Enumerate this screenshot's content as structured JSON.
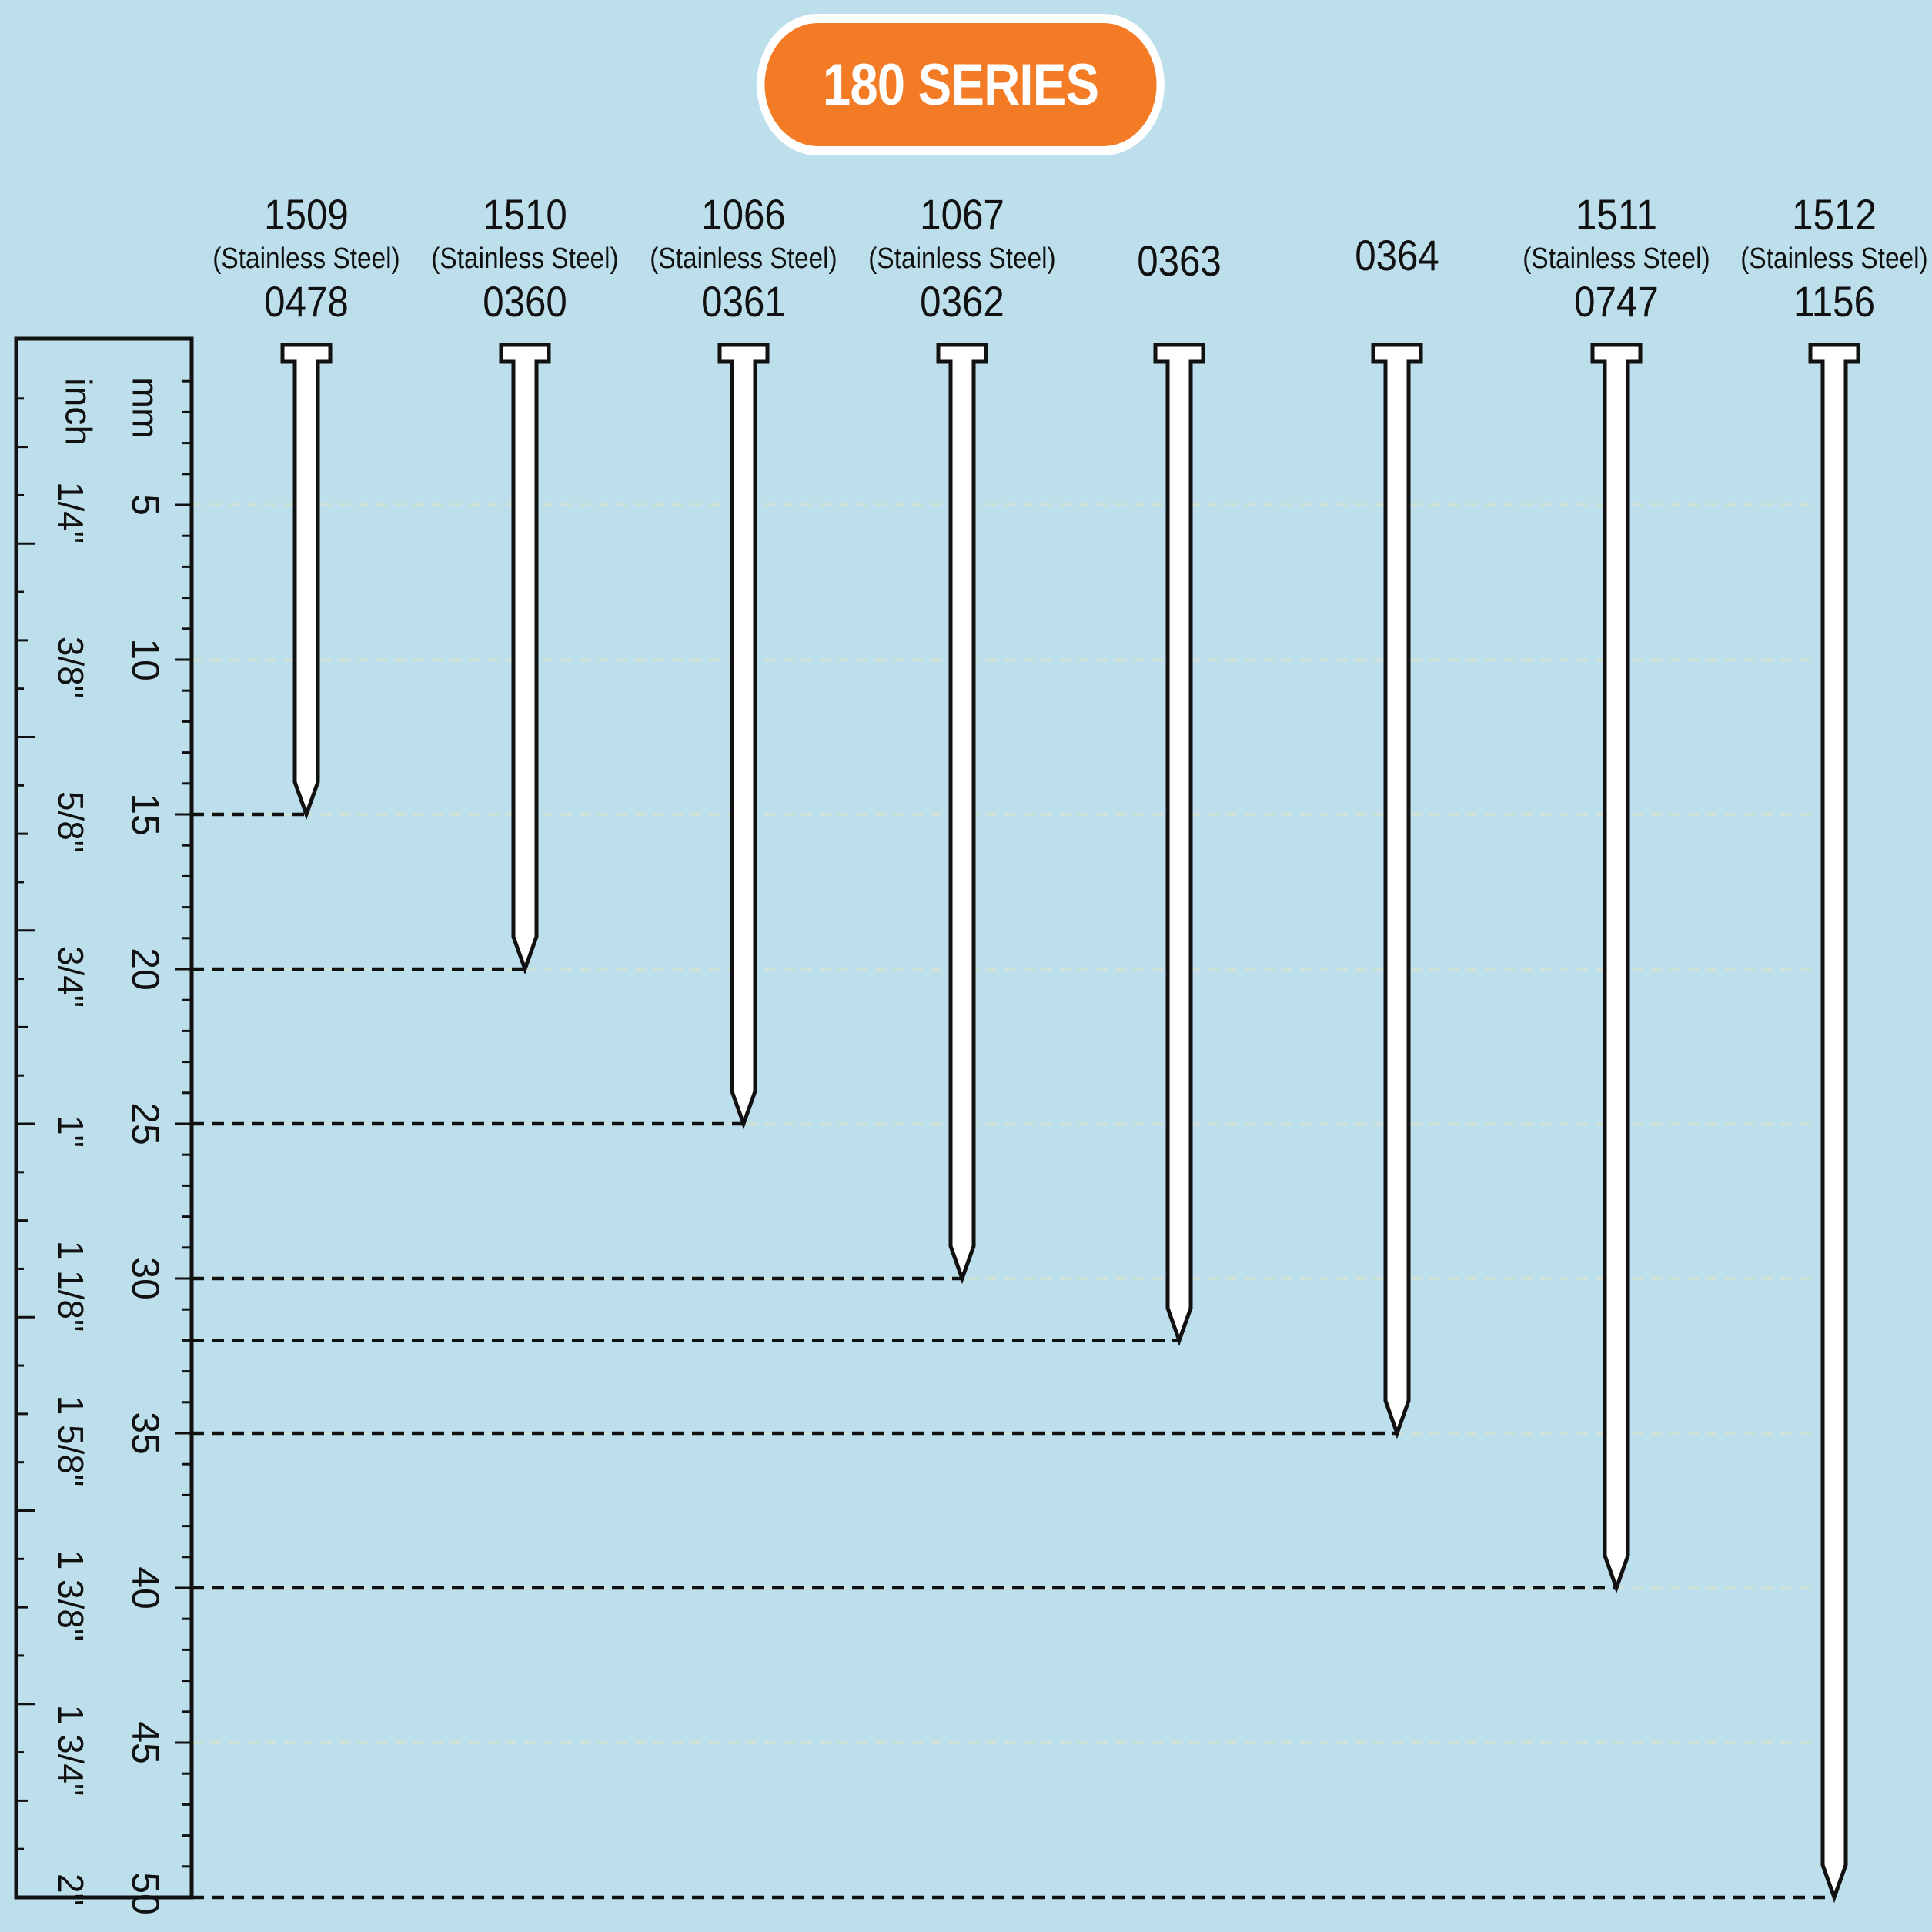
{
  "title": "180 SERIES",
  "ruler": {
    "mm_label": "mm",
    "inch_label": "inch",
    "mm_ticks": [
      "5",
      "10",
      "15",
      "20",
      "25",
      "30",
      "35",
      "40",
      "45",
      "50"
    ],
    "inch_ticks": [
      "1/4\"",
      "3/8\"",
      "5/8\"",
      "3/4\"",
      "1\"",
      "1 1/8\"",
      "1 5/8\"",
      "1 3/8\"",
      "1 3/4\"",
      "2\""
    ]
  },
  "chart_data": {
    "type": "diagram",
    "unit": "mm",
    "range_mm": [
      0,
      50
    ],
    "nails": [
      {
        "part": "1509",
        "material": "(Stainless Steel)",
        "part2": "0478",
        "length_mm": 15
      },
      {
        "part": "1510",
        "material": "(Stainless Steel)",
        "part2": "0360",
        "length_mm": 20
      },
      {
        "part": "1066",
        "material": "(Stainless Steel)",
        "part2": "0361",
        "length_mm": 25
      },
      {
        "part": "1067",
        "material": "(Stainless Steel)",
        "part2": "0362",
        "length_mm": 30
      },
      {
        "part": "0363",
        "material": "",
        "part2": "",
        "length_mm": 32
      },
      {
        "part": "0364",
        "material": "",
        "part2": "",
        "length_mm": 35
      },
      {
        "part": "1511",
        "material": "(Stainless Steel)",
        "part2": "0747",
        "length_mm": 40
      },
      {
        "part": "1512",
        "material": "(Stainless Steel)",
        "part2": "1156",
        "length_mm": 50
      }
    ]
  },
  "colors": {
    "background": "#bcdfeb",
    "accent": "#f37b25",
    "ink": "#111111",
    "nail_fill": "#ffffff",
    "grid": "#cfe2d8"
  }
}
